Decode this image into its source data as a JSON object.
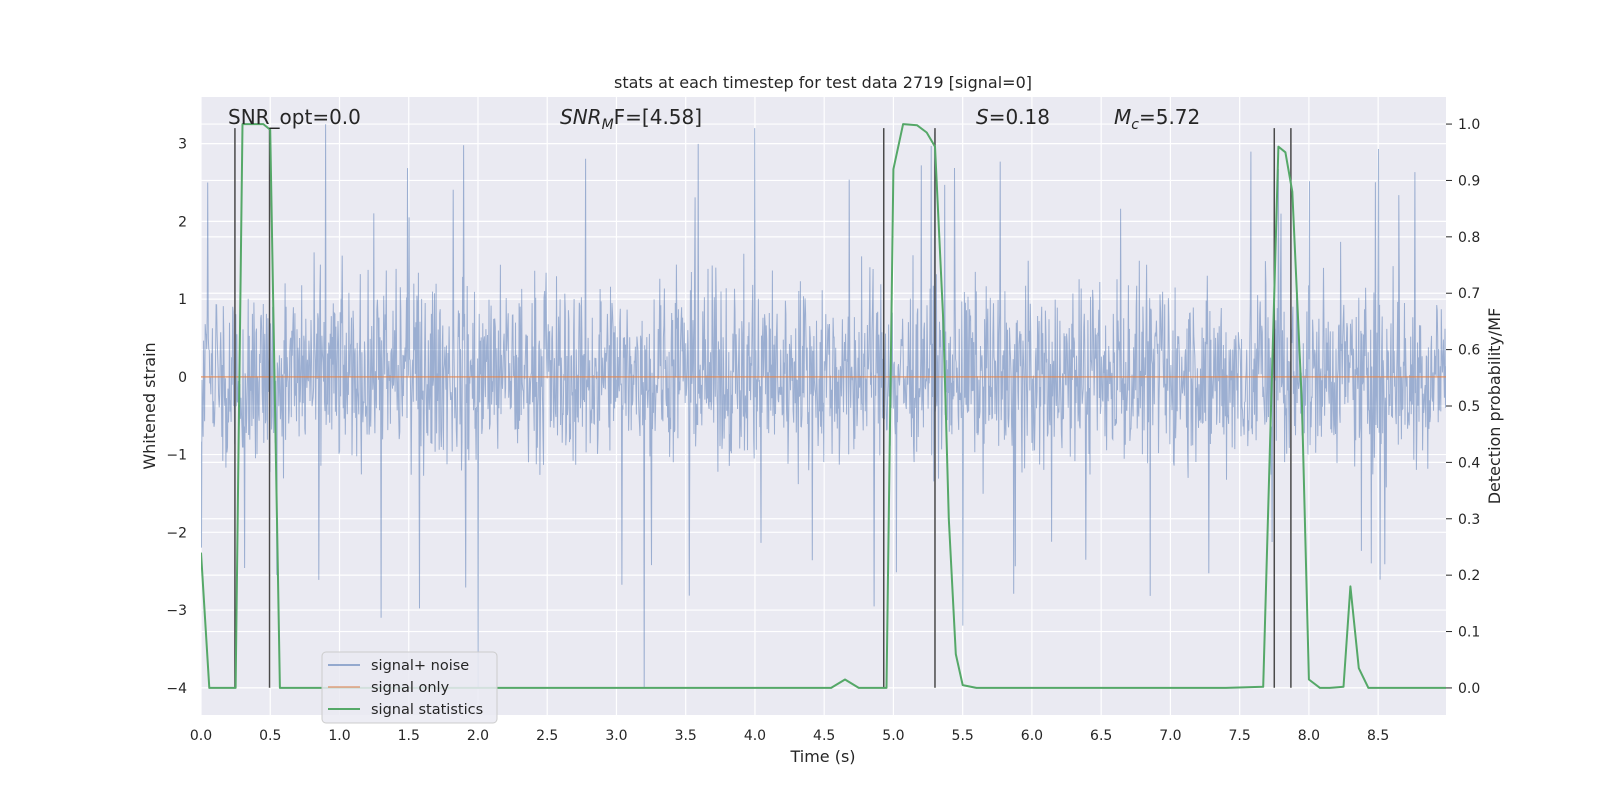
{
  "chart_data": {
    "type": "line",
    "title": "stats at each timestep for test data 2719 [signal=0]",
    "xlabel": "Time (s)",
    "ylabel_left": "Whitened strain",
    "ylabel_right": "Detection probability/MF",
    "xlim": [
      0.0,
      8.99
    ],
    "ylim_left": [
      -4.35,
      3.6
    ],
    "ylim_right": [
      -0.048,
      1.048
    ],
    "grid": true,
    "legend_position": "lower-left",
    "x_ticks": [
      "0.0",
      "0.5",
      "1.0",
      "1.5",
      "2.0",
      "2.5",
      "3.0",
      "3.5",
      "4.0",
      "4.5",
      "5.0",
      "5.5",
      "6.0",
      "6.5",
      "7.0",
      "7.5",
      "8.0",
      "8.5"
    ],
    "x_tick_values": [
      0.0,
      0.5,
      1.0,
      1.5,
      2.0,
      2.5,
      3.0,
      3.5,
      4.0,
      4.5,
      5.0,
      5.5,
      6.0,
      6.5,
      7.0,
      7.5,
      8.0,
      8.5
    ],
    "y_left_ticks": [
      "−4",
      "−3",
      "−2",
      "−1",
      "0",
      "1",
      "2",
      "3"
    ],
    "y_left_tick_values": [
      -4,
      -3,
      -2,
      -1,
      0,
      1,
      2,
      3
    ],
    "y_right_ticks": [
      "0.0",
      "0.1",
      "0.2",
      "0.3",
      "0.4",
      "0.5",
      "0.6",
      "0.7",
      "0.8",
      "0.9",
      "1.0"
    ],
    "y_right_tick_values": [
      0.0,
      0.1,
      0.2,
      0.3,
      0.4,
      0.5,
      0.6,
      0.7,
      0.8,
      0.9,
      1.0
    ],
    "annotations": {
      "snr_opt": "SNR_opt=0.0",
      "snr_mf_base": "SNR",
      "snr_mf_sub": "M",
      "snr_mf_rest": "F=[4.58]",
      "s_base": "S",
      "s_rest": "=0.18",
      "mc_base": "M",
      "mc_sub": "c",
      "mc_rest": "=5.72"
    },
    "series": [
      {
        "name": "signal+ noise",
        "color": "#4c72b0",
        "axis": "left",
        "kind": "noise",
        "x_range": [
          0.0,
          8.99
        ],
        "typical_spread": [
          -1.6,
          1.8
        ],
        "peaks": [
          [
            0.05,
            2.5
          ],
          [
            0.9,
            3.25
          ],
          [
            1.3,
            -3.1
          ],
          [
            2.0,
            -4.0
          ],
          [
            3.2,
            -4.0
          ],
          [
            4.0,
            3.2
          ],
          [
            5.3,
            3.15
          ],
          [
            5.5,
            -3.2
          ],
          [
            7.8,
            2.1
          ],
          [
            8.45,
            -2.4
          ]
        ]
      },
      {
        "name": "signal only",
        "color": "#dd8452",
        "axis": "left",
        "x": [
          0.0,
          8.99
        ],
        "y": [
          0.0,
          0.0
        ]
      },
      {
        "name": "signal statistics",
        "color": "#55a868",
        "axis": "right",
        "x": [
          0.0,
          0.06,
          0.25,
          0.3,
          0.45,
          0.5,
          0.57,
          0.75,
          1.0,
          4.55,
          4.65,
          4.75,
          4.93,
          4.95,
          5.0,
          5.07,
          5.17,
          5.24,
          5.3,
          5.36,
          5.4,
          5.45,
          5.5,
          5.6,
          7.4,
          7.67,
          7.78,
          7.83,
          7.88,
          7.95,
          8.0,
          8.08,
          8.15,
          8.25,
          8.3,
          8.36,
          8.43,
          8.55,
          8.99
        ],
        "y": [
          0.24,
          0.0,
          0.0,
          1.0,
          1.0,
          0.99,
          0.0,
          0.0,
          0.0,
          0.0,
          0.015,
          0.0,
          0.0,
          0.0,
          0.92,
          1.0,
          0.998,
          0.985,
          0.96,
          0.65,
          0.3,
          0.06,
          0.005,
          0.0,
          0.0,
          0.002,
          0.96,
          0.95,
          0.88,
          0.5,
          0.015,
          0.0,
          0.0,
          0.002,
          0.18,
          0.035,
          0.0,
          0.0,
          0.0
        ]
      }
    ],
    "vertical_markers": [
      {
        "x": 0.245,
        "y_top_left": 3.2,
        "y_bottom_left": -4.0
      },
      {
        "x": 0.495,
        "y_top_left": 3.2,
        "y_bottom_left": -4.0
      },
      {
        "x": 4.93,
        "y_top_left": 3.2,
        "y_bottom_left": -4.0
      },
      {
        "x": 5.3,
        "y_top_left": 3.2,
        "y_bottom_left": -4.0
      },
      {
        "x": 7.75,
        "y_top_left": 3.2,
        "y_bottom_left": -4.0
      },
      {
        "x": 7.87,
        "y_top_left": 3.2,
        "y_bottom_left": -4.0
      }
    ]
  }
}
